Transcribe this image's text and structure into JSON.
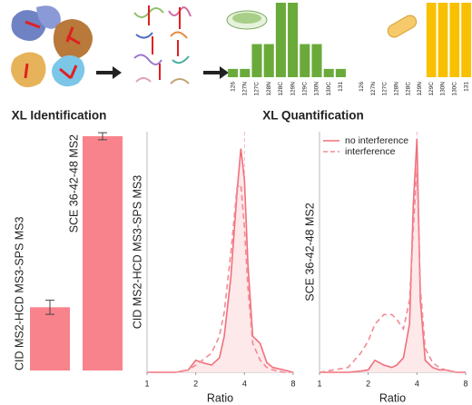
{
  "chart_data": [
    {
      "type": "minibar",
      "categories": [
        "126",
        "127N",
        "127C",
        "128N",
        "128C",
        "129N",
        "129C",
        "130N",
        "130C",
        "131"
      ],
      "values": [
        1,
        1,
        4,
        4,
        9,
        9,
        4,
        4,
        1,
        1
      ],
      "color": "#6aaa3a"
    },
    {
      "type": "minibar",
      "categories": [
        "126",
        "127N",
        "127C",
        "128N",
        "128C",
        "129N",
        "129C",
        "130N",
        "130C",
        "131"
      ],
      "values": [
        0,
        0,
        0,
        0,
        0,
        0,
        9,
        9,
        9,
        9
      ],
      "color": "#f9c000"
    },
    {
      "type": "bar",
      "title": "XL Identification",
      "categories": [
        "CID MS2-HCD MS3-SPS MS3",
        "SCE 36-42-48 MS2"
      ],
      "values": [
        27,
        100
      ],
      "errors": [
        3,
        1.5
      ],
      "color": "#f8838c"
    },
    {
      "type": "density",
      "title": "XL Quantification",
      "y_label": "CID MS2-HCD MS3-SPS MS3",
      "x_label": "Ratio",
      "x": [
        1,
        1.5,
        1.8,
        2,
        2.2,
        2.5,
        2.8,
        3,
        3.3,
        3.6,
        3.8,
        4,
        4.2,
        4.5,
        5,
        5.5,
        6,
        7,
        8
      ],
      "xlim": [
        1,
        8
      ],
      "xticks": [
        1,
        2,
        4,
        8
      ],
      "log_x": true,
      "ylim": [
        0,
        1
      ],
      "reference_x": 4,
      "fill_color": "#fde8ea",
      "series": [
        {
          "color": "#f0707c",
          "dashed": false,
          "values": [
            0,
            0,
            0.01,
            0.05,
            0.04,
            0.03,
            0.06,
            0.15,
            0.4,
            0.75,
            0.93,
            0.8,
            0.45,
            0.15,
            0.12,
            0.04,
            0.02,
            0.01,
            0
          ]
        },
        {
          "color": "#f48a94",
          "dashed": true,
          "values": [
            0,
            0,
            0.01,
            0.03,
            0.05,
            0.08,
            0.15,
            0.25,
            0.5,
            0.77,
            0.78,
            0.6,
            0.35,
            0.12,
            0.05,
            0.02,
            0.01,
            0,
            0
          ]
        }
      ]
    },
    {
      "type": "density",
      "y_label": "SCE 36-42-48 MS2",
      "x_label": "Ratio",
      "x": [
        1,
        1.5,
        1.8,
        2,
        2.2,
        2.5,
        2.8,
        3,
        3.3,
        3.6,
        3.8,
        4,
        4.2,
        4.5,
        5,
        5.5,
        6,
        7,
        8
      ],
      "xlim": [
        1,
        8
      ],
      "xticks": [
        1,
        2,
        4,
        8
      ],
      "log_x": true,
      "ylim": [
        0,
        1
      ],
      "reference_x": 4,
      "fill_color": "#fde8ea",
      "legend": "upper left",
      "series": [
        {
          "name": "no interference",
          "color": "#f0707c",
          "dashed": false,
          "values": [
            0,
            0,
            0.005,
            0.01,
            0.05,
            0.03,
            0.02,
            0.03,
            0.06,
            0.2,
            0.7,
            0.97,
            0.3,
            0.05,
            0.02,
            0.01,
            0.01,
            0,
            0
          ]
        },
        {
          "name": "interference",
          "color": "#f48a94",
          "dashed": true,
          "values": [
            0,
            0.02,
            0.08,
            0.13,
            0.2,
            0.24,
            0.24,
            0.22,
            0.18,
            0.3,
            0.6,
            0.85,
            0.35,
            0.1,
            0.04,
            0.02,
            0.01,
            0,
            0
          ]
        }
      ]
    }
  ]
}
